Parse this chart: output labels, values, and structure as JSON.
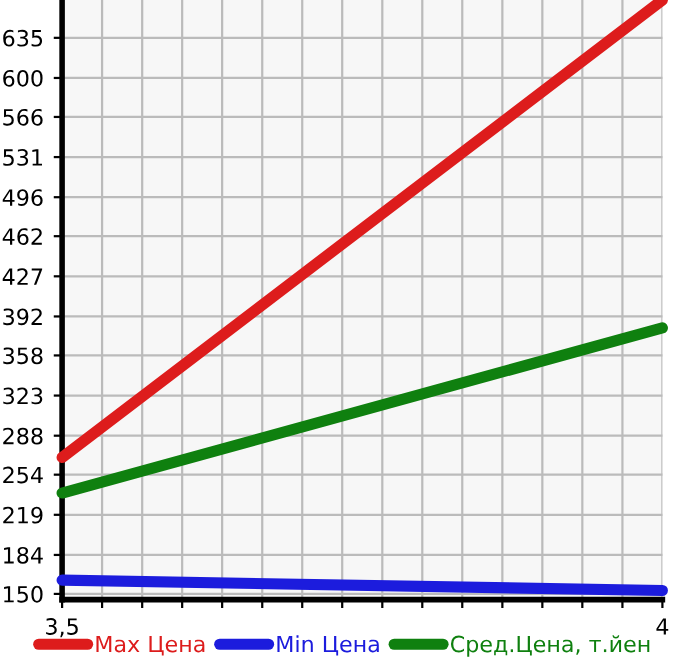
{
  "chart_data": {
    "type": "line",
    "x": [
      3.5,
      4
    ],
    "series": [
      {
        "name": "Max Цена",
        "color": "#dd1c1c",
        "values": [
          269,
          668
        ]
      },
      {
        "name": "Min Цена",
        "color": "#1c1cdd",
        "values": [
          162,
          153
        ]
      },
      {
        "name": "Сред.Цена, т.йен",
        "color": "#0f800f",
        "values": [
          238,
          382
        ]
      }
    ],
    "xlim": [
      3.5,
      4
    ],
    "ylim": [
      145,
      668
    ],
    "xticks": [
      {
        "value": 3.5,
        "label": "3,5"
      },
      {
        "value": 3.5333,
        "label": null
      },
      {
        "value": 3.5667,
        "label": null
      },
      {
        "value": 3.6,
        "label": null
      },
      {
        "value": 3.6333,
        "label": null
      },
      {
        "value": 3.6667,
        "label": null
      },
      {
        "value": 3.7,
        "label": null
      },
      {
        "value": 3.7333,
        "label": null
      },
      {
        "value": 3.7667,
        "label": null
      },
      {
        "value": 3.8,
        "label": null
      },
      {
        "value": 3.8333,
        "label": null
      },
      {
        "value": 3.8667,
        "label": null
      },
      {
        "value": 3.9,
        "label": null
      },
      {
        "value": 3.9333,
        "label": null
      },
      {
        "value": 3.9667,
        "label": null
      },
      {
        "value": 4,
        "label": "4"
      }
    ],
    "yticks": [
      150,
      184,
      219,
      254,
      288,
      323,
      358,
      392,
      427,
      462,
      496,
      531,
      566,
      600,
      635
    ],
    "grid": true,
    "legend": "bottom",
    "marker": "none",
    "line_style": "solid"
  }
}
